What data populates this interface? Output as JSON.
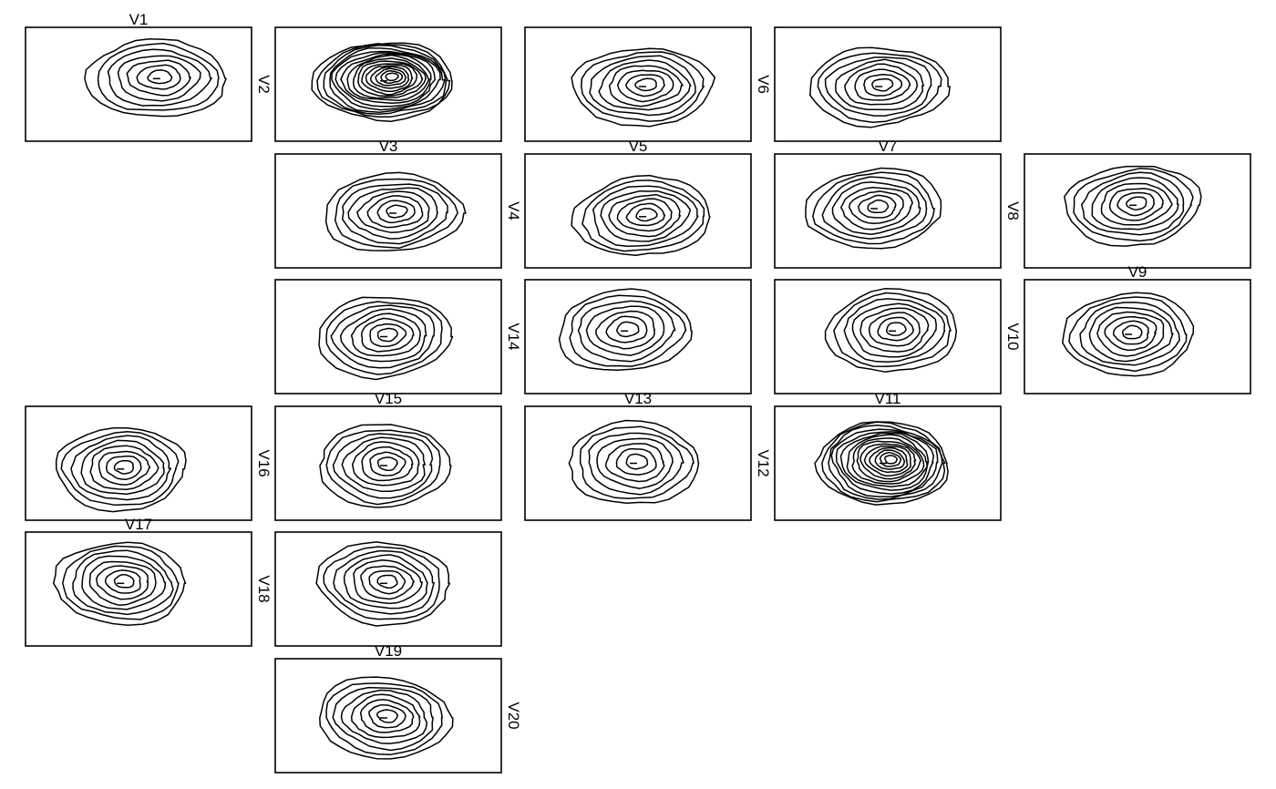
{
  "chart_data": {
    "type": "contour",
    "title": "",
    "xlabel": "",
    "ylabel": "",
    "grid": false,
    "colors": {
      "line": "#000000",
      "frame": "#000000",
      "background": "#ffffff"
    },
    "panels": [
      {
        "row": 1,
        "col": 1,
        "label_top": "V1",
        "label_side": "V2",
        "levels": 7,
        "cx": 0.58,
        "cy": 0.45
      },
      {
        "row": 1,
        "col": 2,
        "label_top": "",
        "label_side": "",
        "levels": 16,
        "cx": 0.48,
        "cy": 0.47
      },
      {
        "row": 1,
        "col": 3,
        "label_top": "",
        "label_side": "V6",
        "levels": 8,
        "cx": 0.52,
        "cy": 0.52
      },
      {
        "row": 1,
        "col": 4,
        "label_top": "",
        "label_side": "",
        "levels": 8,
        "cx": 0.46,
        "cy": 0.52
      },
      {
        "row": 2,
        "col": 2,
        "label_top": "V3",
        "label_side": "V4",
        "levels": 8,
        "cx": 0.52,
        "cy": 0.52
      },
      {
        "row": 2,
        "col": 3,
        "label_top": "V5",
        "label_side": "",
        "levels": 8,
        "cx": 0.52,
        "cy": 0.55
      },
      {
        "row": 2,
        "col": 4,
        "label_top": "V7",
        "label_side": "V8",
        "levels": 8,
        "cx": 0.44,
        "cy": 0.48
      },
      {
        "row": 2,
        "col": 5,
        "label_top": "",
        "label_side": "",
        "levels": 8,
        "cx": 0.48,
        "cy": 0.45
      },
      {
        "row": 3,
        "col": 2,
        "label_top": "",
        "label_side": "V14",
        "levels": 8,
        "cx": 0.48,
        "cy": 0.5
      },
      {
        "row": 3,
        "col": 3,
        "label_top": "",
        "label_side": "",
        "levels": 7,
        "cx": 0.44,
        "cy": 0.45
      },
      {
        "row": 3,
        "col": 4,
        "label_top": "",
        "label_side": "V10",
        "levels": 8,
        "cx": 0.52,
        "cy": 0.45
      },
      {
        "row": 3,
        "col": 5,
        "label_top": "V9",
        "label_side": "",
        "levels": 8,
        "cx": 0.46,
        "cy": 0.48
      },
      {
        "row": 4,
        "col": 1,
        "label_top": "",
        "label_side": "V16",
        "levels": 8,
        "cx": 0.42,
        "cy": 0.55
      },
      {
        "row": 4,
        "col": 2,
        "label_top": "V15",
        "label_side": "",
        "levels": 8,
        "cx": 0.48,
        "cy": 0.52
      },
      {
        "row": 4,
        "col": 3,
        "label_top": "V13",
        "label_side": "V12",
        "levels": 7,
        "cx": 0.48,
        "cy": 0.5
      },
      {
        "row": 4,
        "col": 4,
        "label_top": "V11",
        "label_side": "",
        "levels": 15,
        "cx": 0.48,
        "cy": 0.5
      },
      {
        "row": 5,
        "col": 1,
        "label_top": "V17",
        "label_side": "V18",
        "levels": 8,
        "cx": 0.42,
        "cy": 0.45
      },
      {
        "row": 5,
        "col": 2,
        "label_top": "",
        "label_side": "",
        "levels": 8,
        "cx": 0.48,
        "cy": 0.45
      },
      {
        "row": 6,
        "col": 2,
        "label_top": "V19",
        "label_side": "V20",
        "levels": 8,
        "cx": 0.48,
        "cy": 0.52
      }
    ]
  }
}
